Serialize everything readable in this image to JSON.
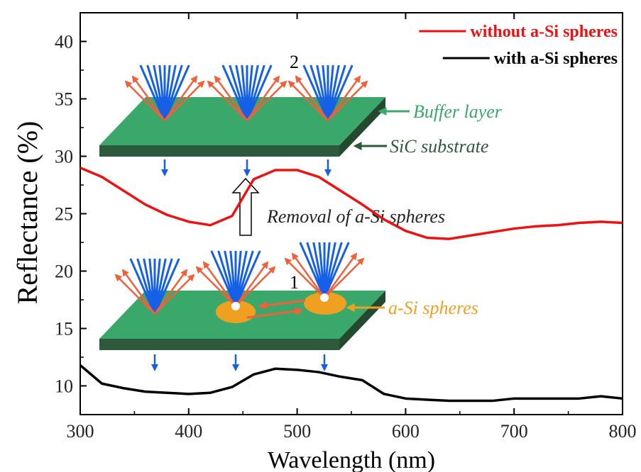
{
  "chart_data": {
    "type": "line",
    "xlabel": "Wavelength (nm)",
    "ylabel": "Reflectance (%)",
    "x": [
      300,
      320,
      340,
      360,
      380,
      400,
      420,
      440,
      460,
      480,
      500,
      520,
      540,
      560,
      580,
      600,
      620,
      640,
      660,
      680,
      700,
      720,
      740,
      760,
      780,
      800
    ],
    "series": [
      {
        "name": "without a-Si spheres",
        "color": "#ee1111",
        "values": [
          29,
          28.2,
          27,
          25.8,
          24.9,
          24.3,
          24,
          24.8,
          28,
          28.8,
          28.8,
          28.2,
          27,
          25.8,
          24.5,
          23.5,
          22.9,
          22.8,
          23.1,
          23.4,
          23.7,
          23.9,
          24,
          24.2,
          24.3,
          24.2
        ]
      },
      {
        "name": "with a-Si spheres",
        "color": "#000000",
        "values": [
          11.8,
          10.2,
          9.8,
          9.5,
          9.4,
          9.3,
          9.4,
          9.9,
          11,
          11.5,
          11.4,
          11.2,
          10.8,
          10.5,
          9.3,
          8.9,
          8.8,
          8.7,
          8.7,
          8.7,
          8.9,
          8.9,
          8.9,
          8.9,
          9.1,
          8.9
        ]
      }
    ],
    "xlim": [
      300,
      800
    ],
    "xticks": [
      300,
      400,
      500,
      600,
      700,
      800
    ],
    "ylim": [
      7.5,
      42.5
    ],
    "yticks": [
      10,
      15,
      20,
      25,
      30,
      35,
      40
    ],
    "legend": "upper right",
    "annotations": {
      "label_2": "2",
      "label_1": "1",
      "buffer": "Buffer layer",
      "substrate": "SiC substrate",
      "removal": "Removal of a-Si spheres",
      "spheres": "a-Si spheres"
    }
  }
}
